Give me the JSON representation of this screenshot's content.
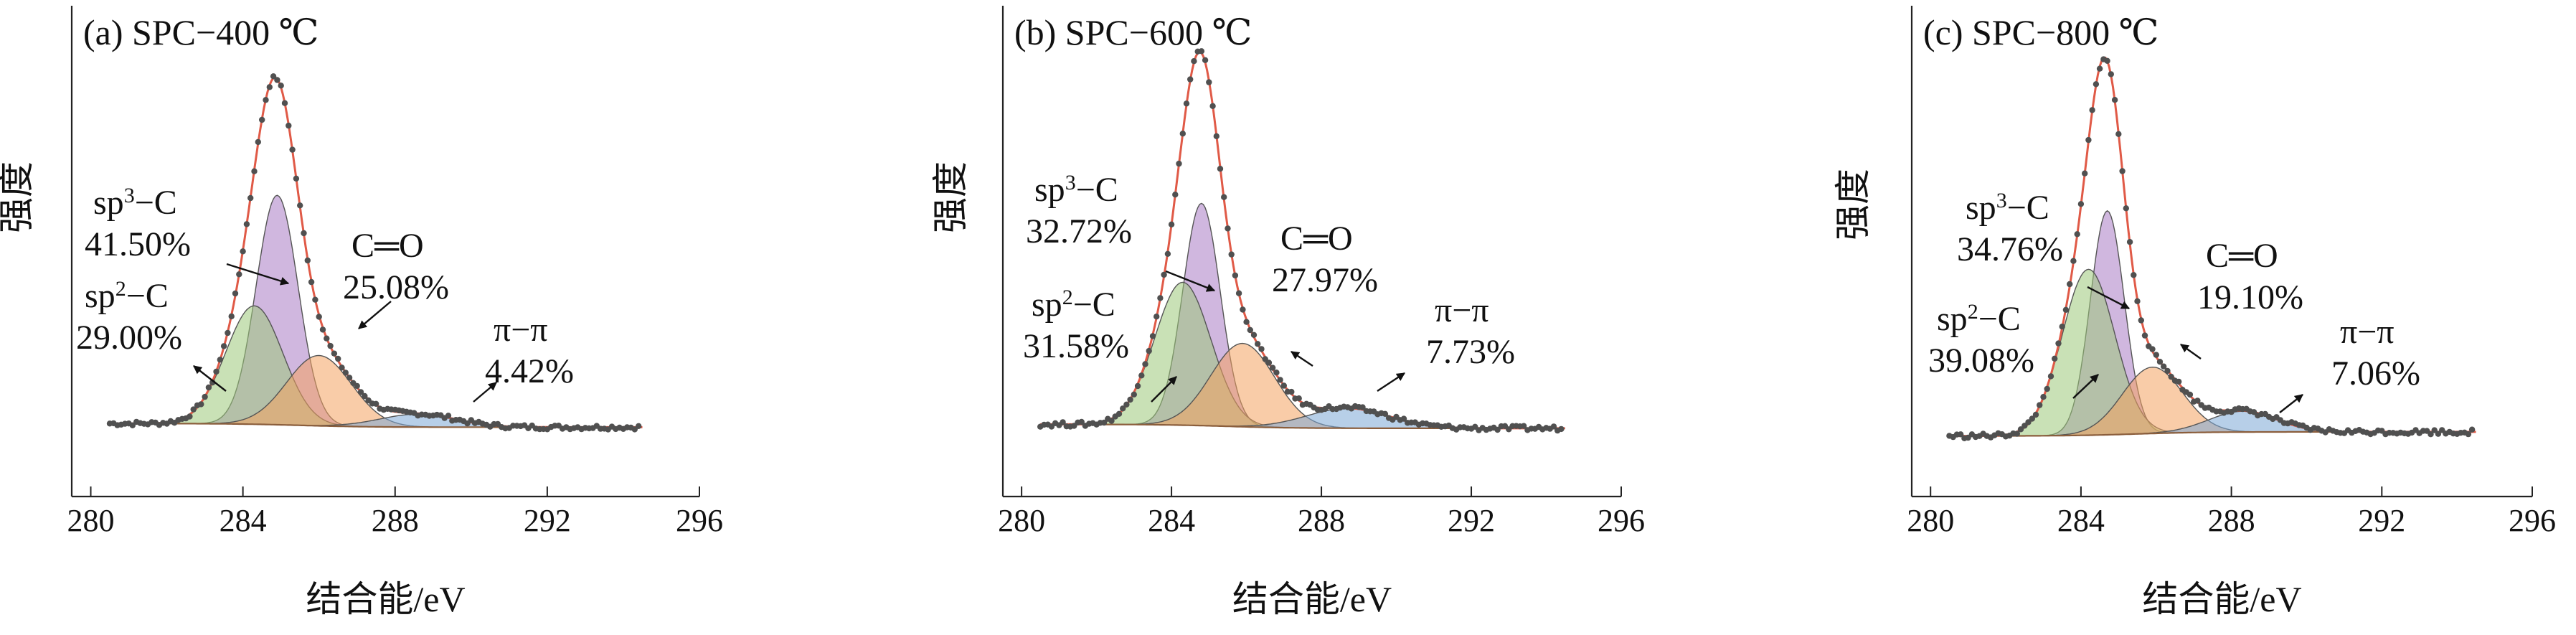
{
  "chart_data": [
    {
      "type": "line",
      "title": "(a)  SPC−400 ℃",
      "xlabel": "结合能/eV",
      "ylabel": "强度",
      "xlim": [
        279.5,
        296
      ],
      "xticks": [
        280,
        284,
        288,
        292,
        296
      ],
      "x_range_data": [
        280.5,
        294.5
      ],
      "baseline": {
        "left": 0.05,
        "right": 0.04
      },
      "envelope_peak": 1.0,
      "peaks": [
        {
          "name": "sp³−C",
          "center": 284.9,
          "amplitude": 0.62,
          "sigma": 0.55,
          "area_label": "41.50%",
          "color": "#a97bc4"
        },
        {
          "name": "sp²−C",
          "center": 284.3,
          "amplitude": 0.32,
          "sigma": 0.75,
          "area_label": "29.00%",
          "color": "#9cc97a"
        },
        {
          "name": "C═O",
          "center": 286.0,
          "amplitude": 0.19,
          "sigma": 0.85,
          "area_label": "25.08%",
          "color": "#f4a261"
        },
        {
          "name": "π−π",
          "center": 288.6,
          "amplitude": 0.035,
          "sigma": 1.0,
          "area_label": "4.42%",
          "color": "#7ba7d6"
        }
      ]
    },
    {
      "type": "line",
      "title": "(b)  SPC−600 ℃",
      "xlabel": "结合能/eV",
      "ylabel": "强度",
      "xlim": [
        279.5,
        296
      ],
      "xticks": [
        280,
        284,
        288,
        292,
        296
      ],
      "x_range_data": [
        280.5,
        294.5
      ],
      "baseline": {
        "left": 0.03,
        "right": 0.02
      },
      "envelope_peak": 1.0,
      "peaks": [
        {
          "name": "sp³−C",
          "center": 284.8,
          "amplitude": 0.56,
          "sigma": 0.5,
          "area_label": "32.72%",
          "color": "#a97bc4"
        },
        {
          "name": "sp²−C",
          "center": 284.3,
          "amplitude": 0.36,
          "sigma": 0.75,
          "area_label": "31.58%",
          "color": "#9cc97a"
        },
        {
          "name": "C═O",
          "center": 285.9,
          "amplitude": 0.21,
          "sigma": 0.85,
          "area_label": "27.97%",
          "color": "#f4a261"
        },
        {
          "name": "π−π",
          "center": 288.7,
          "amplitude": 0.05,
          "sigma": 1.1,
          "area_label": "7.73%",
          "color": "#7ba7d6"
        }
      ]
    },
    {
      "type": "line",
      "title": "(c)  SPC−800 ℃",
      "xlabel": "结合能/eV",
      "ylabel": "强度",
      "xlim": [
        279.5,
        296
      ],
      "xticks": [
        280,
        284,
        288,
        292,
        296
      ],
      "x_range_data": [
        280.5,
        294.5
      ],
      "baseline": {
        "left": 0.03,
        "right": 0.04
      },
      "envelope_peak": 1.0,
      "peaks": [
        {
          "name": "sp³−C",
          "center": 284.7,
          "amplitude": 0.54,
          "sigma": 0.45,
          "area_label": "34.76%",
          "color": "#a97bc4"
        },
        {
          "name": "sp²−C",
          "center": 284.2,
          "amplitude": 0.4,
          "sigma": 0.7,
          "area_label": "39.08%",
          "color": "#9cc97a"
        },
        {
          "name": "C═O",
          "center": 285.9,
          "amplitude": 0.16,
          "sigma": 0.8,
          "area_label": "19.10%",
          "color": "#f4a261"
        },
        {
          "name": "π−π",
          "center": 288.3,
          "amplitude": 0.05,
          "sigma": 0.9,
          "area_label": "7.06%",
          "color": "#7ba7d6"
        }
      ]
    }
  ],
  "style": {
    "envelope_color": "#e05a47",
    "data_point_color": "#505050",
    "background_color": "#8b5e3c"
  }
}
